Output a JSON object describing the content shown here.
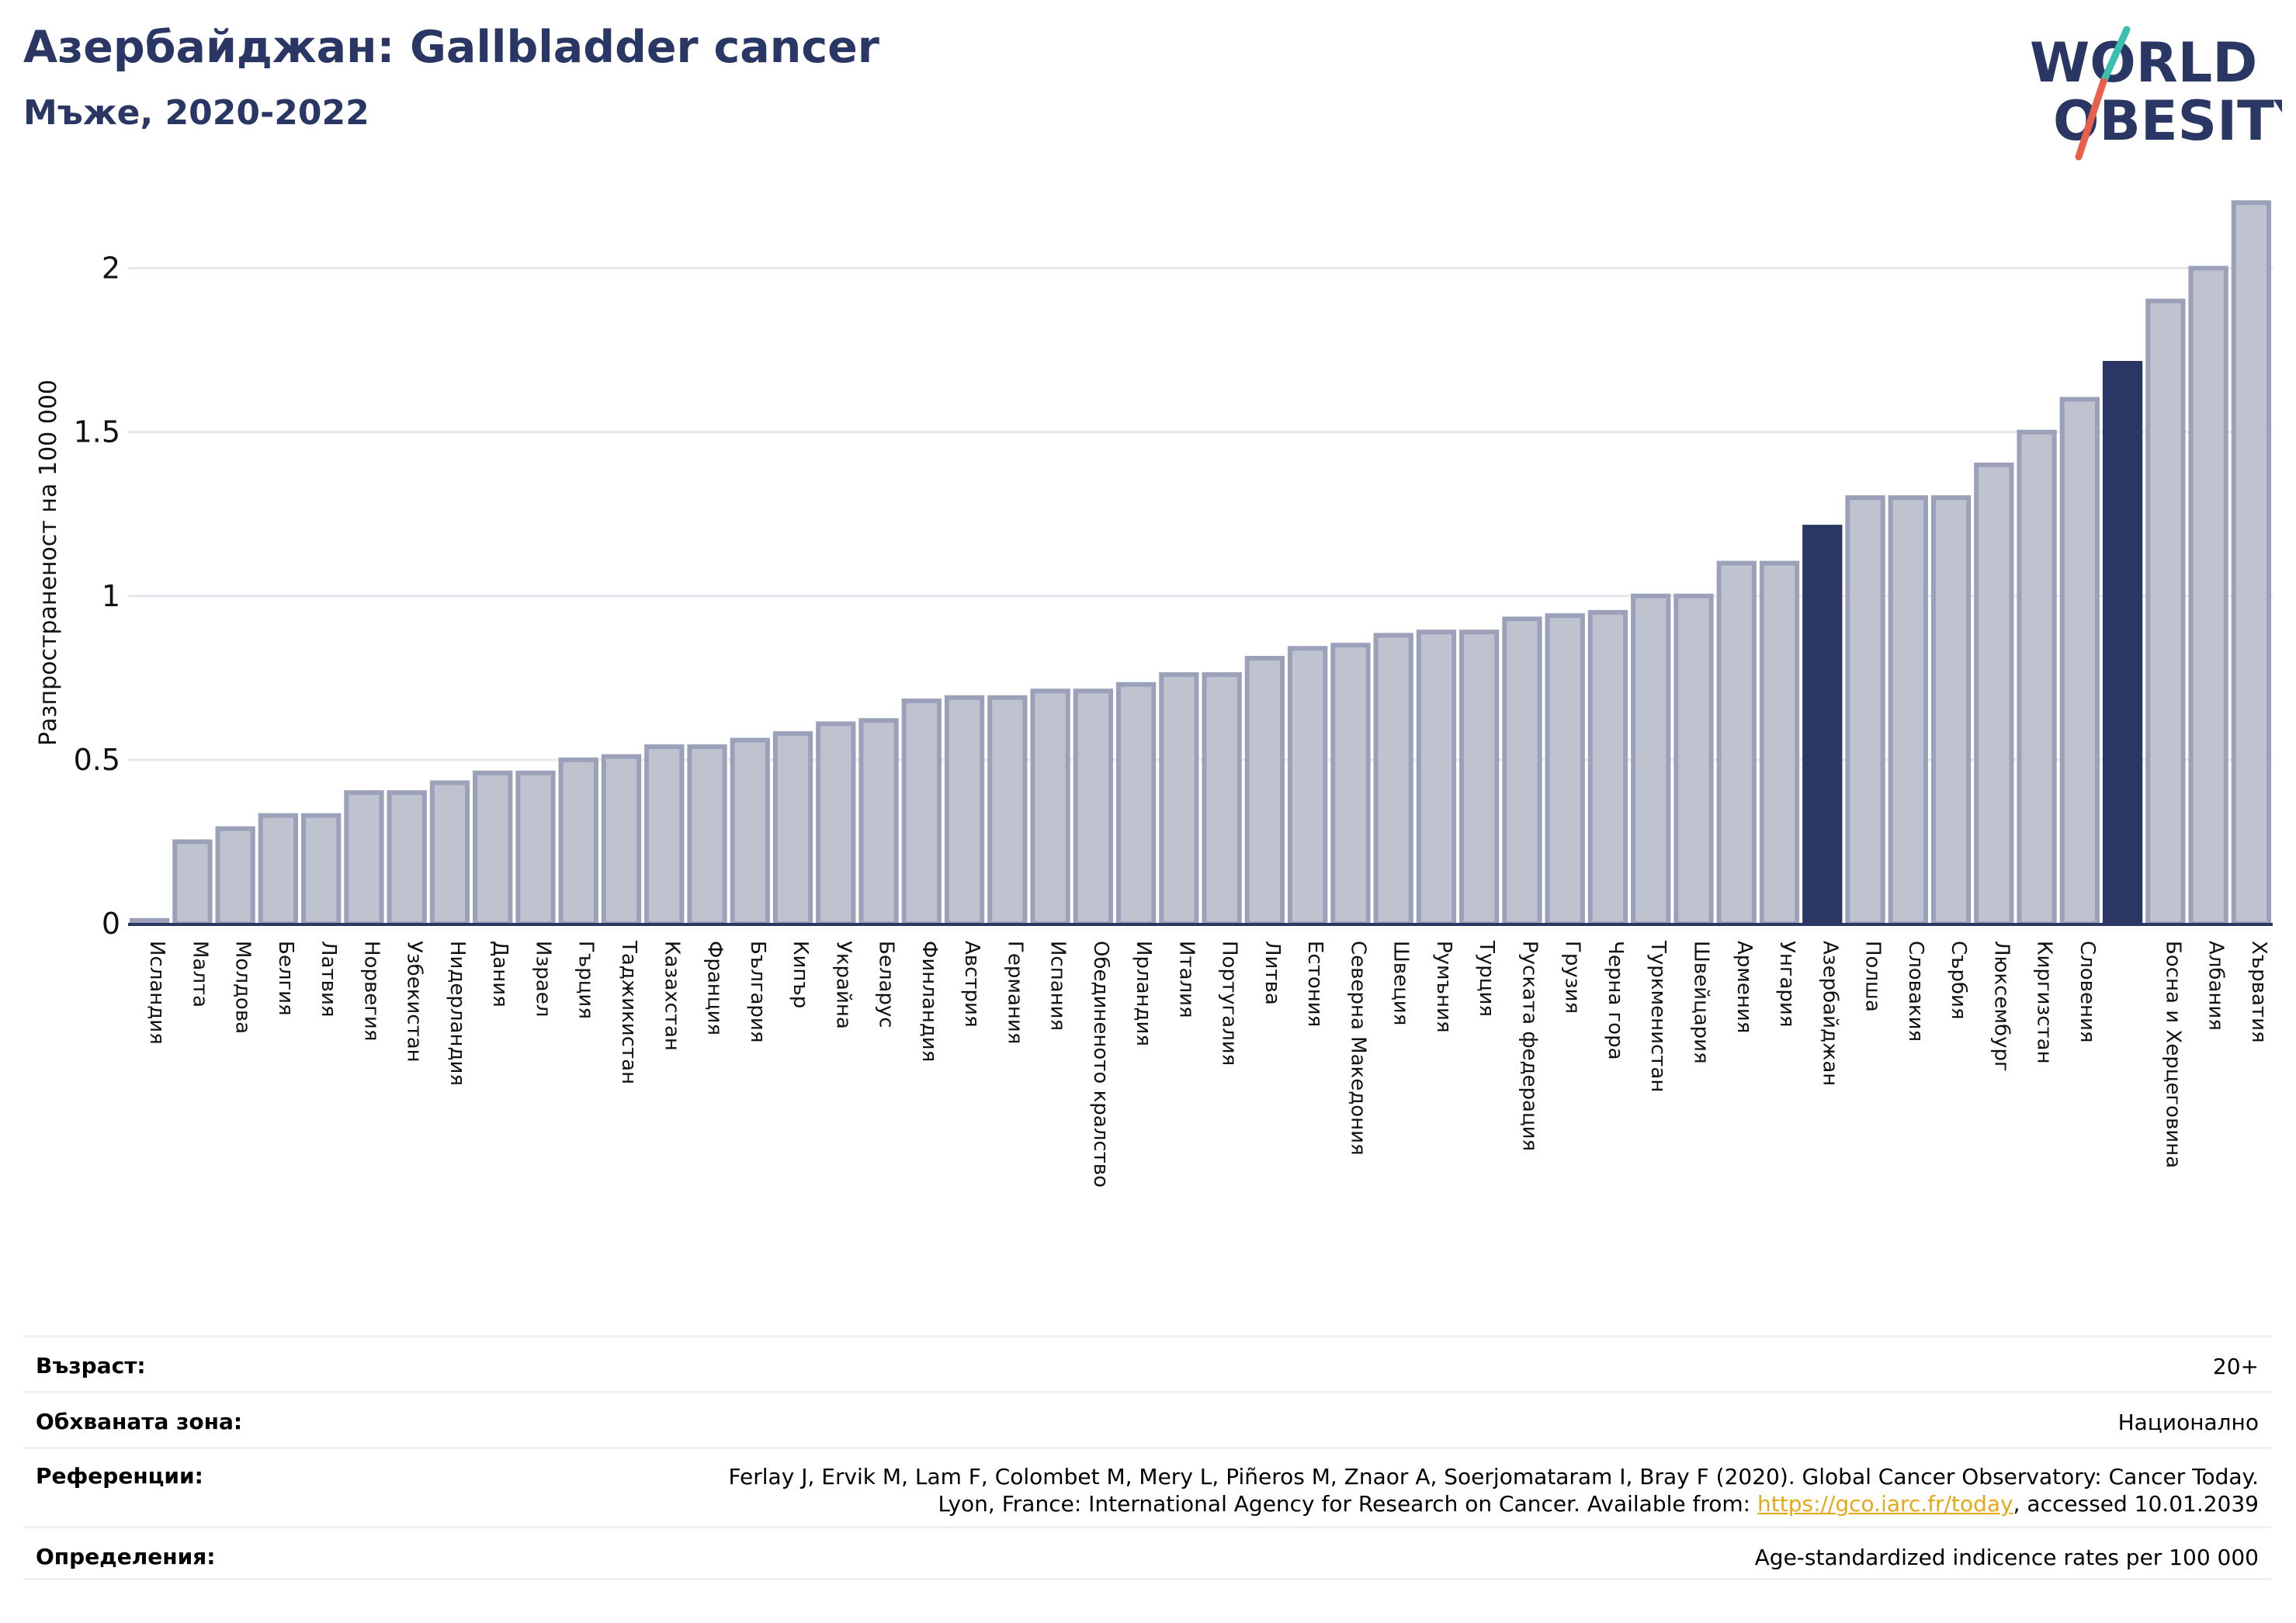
{
  "header": {
    "title": "Азербайджан: Gallbladder cancer",
    "subtitle": "Мъже, 2020-2022"
  },
  "logo": {
    "line1": "WORLD",
    "line2": "OBESITY"
  },
  "colors": {
    "bar": "#bfc3d0",
    "bar_edge": "#9ba1b8",
    "highlight": "#2a3663",
    "grid": "#e6e8ee",
    "axis": "#2a3663",
    "link": "#e6a817"
  },
  "chart_data": {
    "type": "bar",
    "ylabel": "Разпространеност  на 100 000",
    "ylim": [
      0,
      2.25
    ],
    "yticks": [
      0,
      0.5,
      1,
      1.5,
      2
    ],
    "ytick_labels": [
      "0",
      "0.5",
      "1",
      "1.5",
      "2"
    ],
    "grid": true,
    "categories": [
      "Исландия",
      "Малта",
      "Молдова",
      "Белгия",
      "Латвия",
      "Норвегия",
      "Узбекистан",
      "Нидерландия",
      "Дания",
      "Израел",
      "Гърция",
      "Таджикистан",
      "Казахстан",
      "Франция",
      "България",
      "Кипър",
      "Украйна",
      "Беларус",
      "Финландия",
      "Австрия",
      "Германия",
      "Испания",
      "Обединеното кралство",
      "Ирландия",
      "Италия",
      "Португалия",
      "Литва",
      "Естония",
      "Северна Македония",
      "Швеция",
      "Румъния",
      "Турция",
      "Руската федерация",
      "Грузия",
      "Черна гора",
      "Туркменистан",
      "Швейцария",
      "Армения",
      "Унгария",
      "Азербайджан",
      "Полша",
      "Словакия",
      "Сърбия",
      "Люксембург",
      "Киргизстан",
      "Словения",
      "",
      "Босна и Херцеговина",
      "Албания",
      "Хърватия"
    ],
    "values": [
      0.01,
      0.25,
      0.29,
      0.33,
      0.33,
      0.4,
      0.4,
      0.43,
      0.46,
      0.46,
      0.5,
      0.51,
      0.54,
      0.54,
      0.56,
      0.58,
      0.61,
      0.62,
      0.68,
      0.69,
      0.69,
      0.71,
      0.71,
      0.73,
      0.76,
      0.76,
      0.81,
      0.84,
      0.85,
      0.88,
      0.89,
      0.89,
      0.93,
      0.94,
      0.95,
      1.0,
      1.0,
      1.1,
      1.1,
      1.21,
      1.3,
      1.3,
      1.3,
      1.4,
      1.5,
      1.6,
      1.71,
      1.9,
      2.0,
      2.2
    ],
    "highlight_indices": [
      39,
      46
    ]
  },
  "info": {
    "age_label": "Възраст:",
    "age_value": "20+",
    "coverage_label": "Обхваната зона:",
    "coverage_value": "Национално",
    "references_label": "Референции:",
    "references_line1": "Ferlay J, Ervik M, Lam F, Colombet M, Mery L, Piñeros M, Znaor A, Soerjomataram I, Bray F (2020). Global Cancer Observatory: Cancer Today.",
    "references_line2_prefix": "Lyon, France: International Agency for Research on Cancer. Available from: ",
    "references_link": "https://gco.iarc.fr/today",
    "references_line2_suffix": ", accessed 10.01.2039",
    "definitions_label": "Определения:",
    "definitions_value": "Age-standardized indicence rates per 100 000"
  }
}
